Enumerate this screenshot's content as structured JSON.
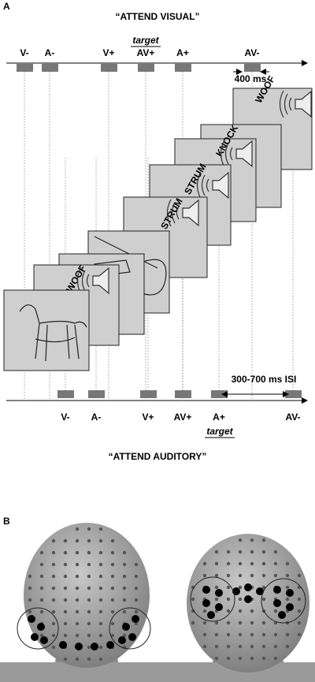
{
  "panel_a": {
    "label": "A",
    "top_title": "“ATTEND VISUAL”",
    "top_target": "target",
    "top_events": [
      "V-",
      "A-",
      "V+",
      "AV+",
      "A+",
      "AV-"
    ],
    "duration": "400 ms",
    "card_words": [
      "WOOF",
      "STRUM",
      "STRUM",
      "KNOCK",
      "WOOF"
    ],
    "isi": "300-700 ms ISI",
    "bottom_events": [
      "V-",
      "A-",
      "V+",
      "AV+",
      "A+",
      "AV-"
    ],
    "bottom_target": "target",
    "bottom_title": "“ATTEND AUDITORY”"
  },
  "panel_b": {
    "label": "B"
  }
}
